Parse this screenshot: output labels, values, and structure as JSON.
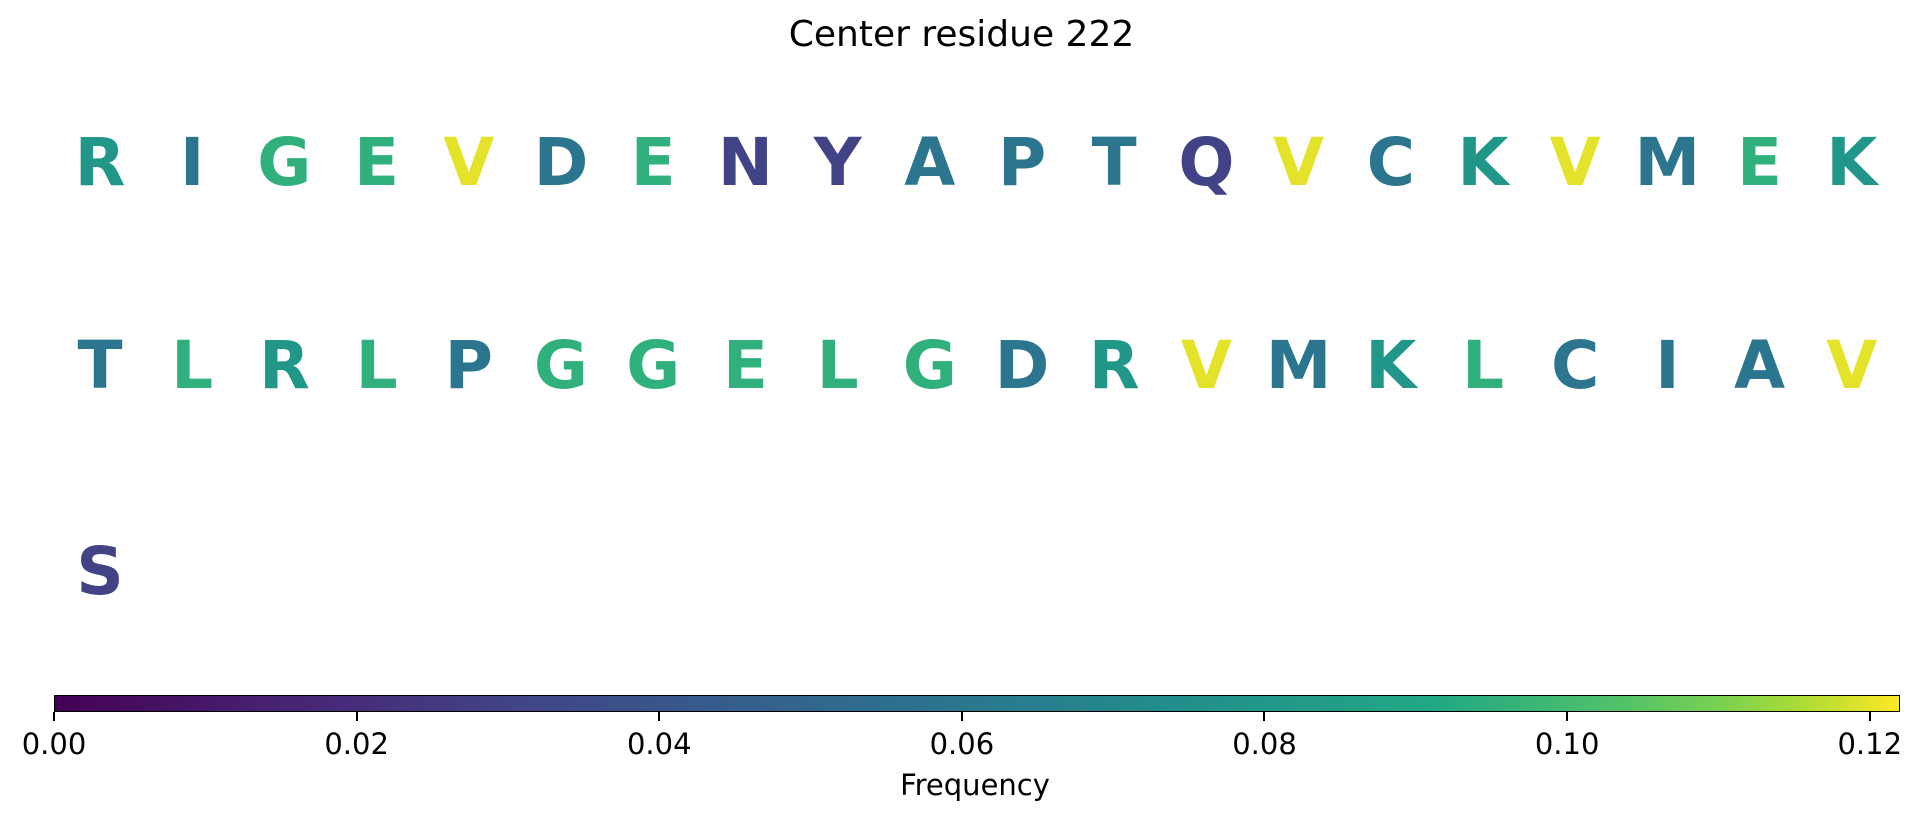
{
  "chart_data": {
    "type": "heatmap",
    "title": "Center residue 222",
    "rows": [
      {
        "residues": [
          "R",
          "I",
          "G",
          "E",
          "V",
          "D",
          "E",
          "N",
          "Y",
          "A",
          "P",
          "T",
          "Q",
          "V",
          "C",
          "K",
          "V",
          "M",
          "E",
          "K"
        ],
        "values": [
          0.08,
          0.06,
          0.095,
          0.095,
          0.12,
          0.06,
          0.095,
          0.03,
          0.03,
          0.06,
          0.06,
          0.06,
          0.03,
          0.12,
          0.06,
          0.08,
          0.12,
          0.06,
          0.095,
          0.08
        ]
      },
      {
        "residues": [
          "T",
          "L",
          "R",
          "L",
          "P",
          "G",
          "G",
          "E",
          "L",
          "G",
          "D",
          "R",
          "V",
          "M",
          "K",
          "L",
          "C",
          "I",
          "A",
          "V"
        ],
        "values": [
          0.06,
          0.095,
          0.08,
          0.095,
          0.06,
          0.095,
          0.095,
          0.095,
          0.095,
          0.095,
          0.06,
          0.08,
          0.12,
          0.06,
          0.08,
          0.095,
          0.06,
          0.06,
          0.06,
          0.12
        ]
      },
      {
        "residues": [
          "S"
        ],
        "values": [
          0.03
        ]
      }
    ],
    "colormap": "viridis",
    "colorbar": {
      "label": "Frequency",
      "range": [
        0.0,
        0.122
      ],
      "ticks": [
        0.0,
        0.02,
        0.04,
        0.06,
        0.08,
        0.1,
        0.12
      ],
      "tick_labels": [
        "0.00",
        "0.02",
        "0.04",
        "0.06",
        "0.08",
        "0.10",
        "0.12"
      ],
      "orientation": "horizontal"
    }
  }
}
